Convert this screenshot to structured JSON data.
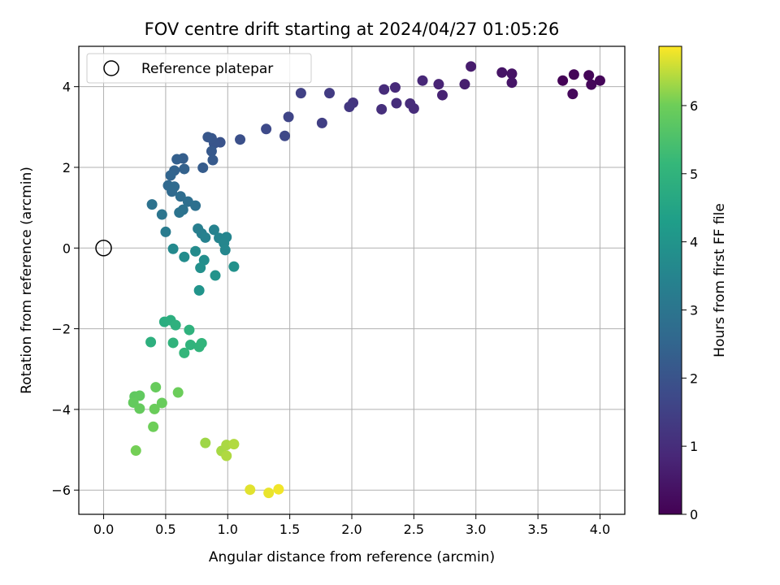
{
  "chart_data": {
    "type": "scatter",
    "title": "FOV centre drift starting at 2024/04/27 01:05:26",
    "xlabel": "Angular distance from reference (arcmin)",
    "ylabel": "Rotation from reference (arcmin)",
    "xlim": [
      -0.2,
      4.2
    ],
    "ylim": [
      -6.6,
      5.0
    ],
    "xticks": [
      "0.0",
      "0.5",
      "1.0",
      "1.5",
      "2.0",
      "2.5",
      "3.0",
      "3.5",
      "4.0"
    ],
    "yticks": [
      "−6",
      "−4",
      "−2",
      "0",
      "2",
      "4"
    ],
    "grid": true,
    "legend": {
      "placement": "top-left",
      "entries": [
        "Reference platepar"
      ]
    },
    "reference_point": {
      "x": 0.0,
      "y": 0.0
    },
    "colorbar": {
      "label": "Hours from first FF file",
      "range": [
        0,
        6.87
      ],
      "ticks": [
        "0",
        "1",
        "2",
        "3",
        "4",
        "5",
        "6"
      ],
      "colormap": "viridis"
    },
    "points": [
      {
        "x": 3.7,
        "y": 4.15,
        "c": 0.05
      },
      {
        "x": 3.79,
        "y": 4.3,
        "c": 0.08
      },
      {
        "x": 3.91,
        "y": 4.28,
        "c": 0.1
      },
      {
        "x": 4.0,
        "y": 4.15,
        "c": 0.12
      },
      {
        "x": 3.93,
        "y": 4.05,
        "c": 0.14
      },
      {
        "x": 3.78,
        "y": 3.82,
        "c": 0.16
      },
      {
        "x": 3.29,
        "y": 4.32,
        "c": 0.4
      },
      {
        "x": 3.29,
        "y": 4.1,
        "c": 0.45
      },
      {
        "x": 3.21,
        "y": 4.35,
        "c": 0.42
      },
      {
        "x": 2.96,
        "y": 4.5,
        "c": 0.6
      },
      {
        "x": 2.91,
        "y": 4.06,
        "c": 0.65
      },
      {
        "x": 2.73,
        "y": 3.79,
        "c": 0.75
      },
      {
        "x": 2.7,
        "y": 4.06,
        "c": 0.78
      },
      {
        "x": 2.57,
        "y": 4.15,
        "c": 0.85
      },
      {
        "x": 2.5,
        "y": 3.46,
        "c": 0.95
      },
      {
        "x": 2.47,
        "y": 3.58,
        "c": 0.98
      },
      {
        "x": 2.36,
        "y": 3.59,
        "c": 1.0
      },
      {
        "x": 2.35,
        "y": 3.98,
        "c": 0.92
      },
      {
        "x": 2.26,
        "y": 3.93,
        "c": 0.96
      },
      {
        "x": 2.24,
        "y": 3.44,
        "c": 1.05
      },
      {
        "x": 2.01,
        "y": 3.6,
        "c": 1.2
      },
      {
        "x": 1.98,
        "y": 3.5,
        "c": 1.25
      },
      {
        "x": 1.82,
        "y": 3.84,
        "c": 1.35
      },
      {
        "x": 1.76,
        "y": 3.1,
        "c": 1.45
      },
      {
        "x": 1.59,
        "y": 3.84,
        "c": 1.5
      },
      {
        "x": 1.49,
        "y": 3.25,
        "c": 1.62
      },
      {
        "x": 1.46,
        "y": 2.78,
        "c": 1.68
      },
      {
        "x": 1.31,
        "y": 2.95,
        "c": 1.75
      },
      {
        "x": 1.1,
        "y": 2.69,
        "c": 1.9
      },
      {
        "x": 0.94,
        "y": 2.62,
        "c": 2.0
      },
      {
        "x": 0.89,
        "y": 2.59,
        "c": 2.05
      },
      {
        "x": 0.87,
        "y": 2.72,
        "c": 2.08
      },
      {
        "x": 0.84,
        "y": 2.75,
        "c": 2.1
      },
      {
        "x": 0.87,
        "y": 2.4,
        "c": 2.15
      },
      {
        "x": 0.88,
        "y": 2.18,
        "c": 2.2
      },
      {
        "x": 0.8,
        "y": 1.99,
        "c": 2.25
      },
      {
        "x": 0.64,
        "y": 2.22,
        "c": 2.3
      },
      {
        "x": 0.59,
        "y": 2.2,
        "c": 2.35
      },
      {
        "x": 0.65,
        "y": 1.96,
        "c": 2.4
      },
      {
        "x": 0.57,
        "y": 1.92,
        "c": 2.45
      },
      {
        "x": 0.54,
        "y": 1.8,
        "c": 2.5
      },
      {
        "x": 0.52,
        "y": 1.55,
        "c": 2.6
      },
      {
        "x": 0.55,
        "y": 1.4,
        "c": 2.65
      },
      {
        "x": 0.57,
        "y": 1.52,
        "c": 2.68
      },
      {
        "x": 0.62,
        "y": 1.28,
        "c": 2.75
      },
      {
        "x": 0.68,
        "y": 1.15,
        "c": 2.8
      },
      {
        "x": 0.74,
        "y": 1.05,
        "c": 2.85
      },
      {
        "x": 0.64,
        "y": 0.95,
        "c": 2.9
      },
      {
        "x": 0.61,
        "y": 0.88,
        "c": 2.95
      },
      {
        "x": 0.39,
        "y": 1.08,
        "c": 2.92
      },
      {
        "x": 0.47,
        "y": 0.83,
        "c": 3.0
      },
      {
        "x": 0.5,
        "y": 0.4,
        "c": 3.2
      },
      {
        "x": 0.76,
        "y": 0.48,
        "c": 3.3
      },
      {
        "x": 0.79,
        "y": 0.36,
        "c": 3.35
      },
      {
        "x": 0.82,
        "y": 0.26,
        "c": 3.4
      },
      {
        "x": 0.89,
        "y": 0.45,
        "c": 3.45
      },
      {
        "x": 0.93,
        "y": 0.25,
        "c": 3.5
      },
      {
        "x": 0.99,
        "y": 0.27,
        "c": 3.52
      },
      {
        "x": 0.97,
        "y": 0.12,
        "c": 3.55
      },
      {
        "x": 0.98,
        "y": -0.05,
        "c": 3.6
      },
      {
        "x": 0.56,
        "y": -0.02,
        "c": 3.65
      },
      {
        "x": 0.74,
        "y": -0.08,
        "c": 3.7
      },
      {
        "x": 0.65,
        "y": -0.22,
        "c": 3.75
      },
      {
        "x": 0.81,
        "y": -0.3,
        "c": 3.8
      },
      {
        "x": 0.78,
        "y": -0.49,
        "c": 3.85
      },
      {
        "x": 1.05,
        "y": -0.46,
        "c": 3.88
      },
      {
        "x": 0.9,
        "y": -0.68,
        "c": 3.95
      },
      {
        "x": 0.77,
        "y": -1.05,
        "c": 4.0
      },
      {
        "x": 0.49,
        "y": -1.83,
        "c": 4.8
      },
      {
        "x": 0.54,
        "y": -1.79,
        "c": 4.85
      },
      {
        "x": 0.58,
        "y": -1.91,
        "c": 4.9
      },
      {
        "x": 0.69,
        "y": -2.03,
        "c": 4.95
      },
      {
        "x": 0.38,
        "y": -2.33,
        "c": 4.88
      },
      {
        "x": 0.56,
        "y": -2.35,
        "c": 4.98
      },
      {
        "x": 0.7,
        "y": -2.4,
        "c": 5.0
      },
      {
        "x": 0.77,
        "y": -2.45,
        "c": 5.02
      },
      {
        "x": 0.79,
        "y": -2.36,
        "c": 5.04
      },
      {
        "x": 0.65,
        "y": -2.6,
        "c": 5.1
      },
      {
        "x": 0.25,
        "y": -3.68,
        "c": 5.8
      },
      {
        "x": 0.29,
        "y": -3.66,
        "c": 5.82
      },
      {
        "x": 0.24,
        "y": -3.83,
        "c": 5.85
      },
      {
        "x": 0.29,
        "y": -3.98,
        "c": 5.87
      },
      {
        "x": 0.42,
        "y": -3.45,
        "c": 5.9
      },
      {
        "x": 0.47,
        "y": -3.84,
        "c": 5.92
      },
      {
        "x": 0.41,
        "y": -3.99,
        "c": 5.95
      },
      {
        "x": 0.6,
        "y": -3.58,
        "c": 5.97
      },
      {
        "x": 0.4,
        "y": -4.43,
        "c": 6.0
      },
      {
        "x": 0.26,
        "y": -5.02,
        "c": 6.05
      },
      {
        "x": 0.82,
        "y": -4.83,
        "c": 6.3
      },
      {
        "x": 0.95,
        "y": -5.03,
        "c": 6.35
      },
      {
        "x": 0.99,
        "y": -4.88,
        "c": 6.37
      },
      {
        "x": 0.99,
        "y": -5.15,
        "c": 6.4
      },
      {
        "x": 1.05,
        "y": -4.86,
        "c": 6.42
      },
      {
        "x": 1.18,
        "y": -5.99,
        "c": 6.7
      },
      {
        "x": 1.33,
        "y": -6.07,
        "c": 6.75
      },
      {
        "x": 1.41,
        "y": -5.98,
        "c": 6.8
      }
    ]
  }
}
